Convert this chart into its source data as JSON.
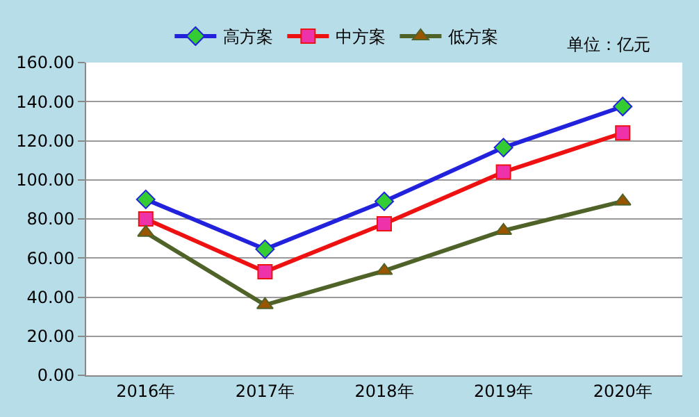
{
  "chart_data": {
    "type": "line",
    "categories": [
      "2016年",
      "2017年",
      "2018年",
      "2019年",
      "2020年"
    ],
    "series": [
      {
        "name": "高方案",
        "color": "#2222dd",
        "marker": "diamond",
        "colors": [
          "#33cc33",
          "#33cc33",
          "#33cc33",
          "#33cc33",
          "#33cc33"
        ],
        "values": [
          90,
          64.5,
          89,
          116.5,
          137.5
        ]
      },
      {
        "name": "中方案",
        "color": "#ee1111",
        "marker": "square",
        "colors": [
          "#ee33aa",
          "#ee33aa",
          "#ee33aa",
          "#ee33aa",
          "#ee33aa"
        ],
        "values": [
          80,
          53,
          77.5,
          104,
          124
        ]
      },
      {
        "name": "低方案",
        "color": "#4f6228",
        "marker": "triangle",
        "colors": [
          "#995500",
          "#995500",
          "#995500",
          "#995500",
          "#995500"
        ],
        "values": [
          73,
          36,
          53.5,
          74,
          89
        ]
      }
    ],
    "annotations": [
      "单位：亿元"
    ],
    "ylim": [
      0,
      160
    ],
    "yticks": [
      {
        "value": 0,
        "label": "0.00"
      },
      {
        "value": 20,
        "label": "20.00"
      },
      {
        "value": 40,
        "label": "40.00"
      },
      {
        "value": 60,
        "label": "60.00"
      },
      {
        "value": 80,
        "label": "80.00"
      },
      {
        "value": 100,
        "label": "100.00"
      },
      {
        "value": 120,
        "label": "120.00"
      },
      {
        "value": 140,
        "label": "140.00"
      },
      {
        "value": 160,
        "label": "160.00"
      }
    ],
    "grid": "y",
    "legend": "top",
    "line_style": "solid"
  }
}
